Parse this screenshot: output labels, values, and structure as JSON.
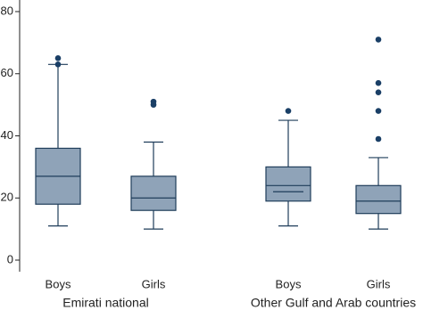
{
  "chart_data": {
    "type": "box",
    "ylim": [
      0,
      80
    ],
    "yticks": [
      0,
      20,
      40,
      60,
      80
    ],
    "box_color": "#8fa3b8",
    "line_color": "#1f3d5a",
    "outlier_color": "#1a3f66",
    "groups": [
      {
        "label": "Emirati national",
        "boxes": [
          {
            "name": "Boys",
            "whisker_low": 11,
            "q1": 18,
            "median": 27,
            "q3": 36,
            "whisker_high": 63,
            "outliers": [
              63,
              65
            ]
          },
          {
            "name": "Girls",
            "whisker_low": 10,
            "q1": 16,
            "median": 20,
            "q3": 27,
            "whisker_high": 38,
            "outliers": [
              50,
              51
            ]
          }
        ]
      },
      {
        "label": "Other Gulf and Arab countries",
        "boxes": [
          {
            "name": "Boys",
            "whisker_low": 11,
            "q1": 19,
            "median": 24,
            "mean": 22,
            "q3": 30,
            "whisker_high": 45,
            "outliers": [
              48
            ]
          },
          {
            "name": "Girls",
            "whisker_low": 10,
            "q1": 15,
            "median": 19,
            "q3": 24,
            "whisker_high": 33,
            "outliers": [
              39,
              48,
              54,
              57,
              71
            ]
          }
        ]
      }
    ]
  }
}
